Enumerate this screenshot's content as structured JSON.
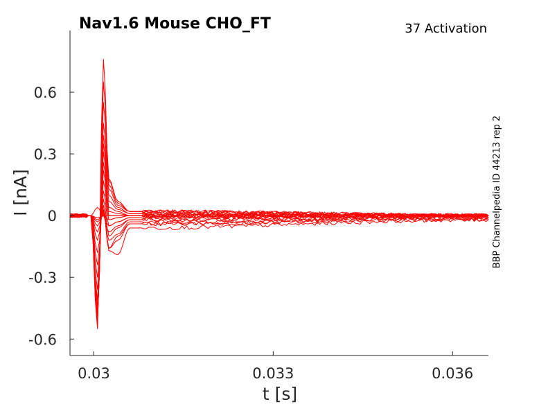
{
  "chart_data": {
    "type": "line",
    "title": "Nav1.6  Mouse  CHO_FT",
    "subtitle": "37  Activation",
    "side_label": "BBP Channelpedia ID 44213 rep 2",
    "xlabel": "t [s]",
    "ylabel": "I [nA]",
    "xlim": [
      0.0296,
      0.0366
    ],
    "ylim": [
      -0.68,
      0.9
    ],
    "x_ticks": [
      0.03,
      0.033,
      0.036
    ],
    "x_tick_labels": [
      "0.03",
      "0.033",
      "0.036"
    ],
    "y_ticks": [
      -0.6,
      -0.3,
      0,
      0.3,
      0.6
    ],
    "y_tick_labels": [
      "-0.6",
      "-0.3",
      "0",
      "0.3",
      "0.6"
    ],
    "grid": false,
    "series_color": "#ff0000",
    "series": [
      {
        "values": [
          [
            0.0296,
            0.0
          ],
          [
            0.02995,
            0.0
          ],
          [
            0.03006,
            0.04
          ],
          [
            0.03016,
            0.0
          ],
          [
            0.03025,
            0.0
          ],
          [
            0.0304,
            0.0
          ],
          [
            0.0306,
            0.0
          ],
          [
            0.0366,
            0.0
          ]
        ]
      },
      {
        "values": [
          [
            0.0296,
            0.0
          ],
          [
            0.02995,
            0.0
          ],
          [
            0.03006,
            -0.02
          ],
          [
            0.03016,
            0.0
          ],
          [
            0.03025,
            -0.02
          ],
          [
            0.0304,
            -0.01
          ],
          [
            0.0306,
            0.0
          ],
          [
            0.0366,
            0.0
          ]
        ]
      },
      {
        "values": [
          [
            0.0296,
            0.0
          ],
          [
            0.02995,
            0.0
          ],
          [
            0.03006,
            -0.01
          ],
          [
            0.03016,
            0.0
          ],
          [
            0.03025,
            -0.05
          ],
          [
            0.0304,
            -0.03
          ],
          [
            0.0306,
            -0.01
          ],
          [
            0.0366,
            0.0
          ]
        ]
      },
      {
        "values": [
          [
            0.0296,
            0.0
          ],
          [
            0.02995,
            0.0
          ],
          [
            0.03006,
            -0.03
          ],
          [
            0.03016,
            0.0
          ],
          [
            0.03025,
            -0.08
          ],
          [
            0.0304,
            -0.05
          ],
          [
            0.0306,
            -0.02
          ],
          [
            0.0366,
            -0.01
          ]
        ]
      },
      {
        "values": [
          [
            0.0296,
            0.0
          ],
          [
            0.02995,
            0.0
          ],
          [
            0.03006,
            -0.05
          ],
          [
            0.03016,
            0.01
          ],
          [
            0.03025,
            -0.12
          ],
          [
            0.0304,
            -0.09
          ],
          [
            0.0306,
            -0.03
          ],
          [
            0.0366,
            -0.01
          ]
        ]
      },
      {
        "values": [
          [
            0.0296,
            0.0
          ],
          [
            0.02995,
            0.0
          ],
          [
            0.03006,
            -0.08
          ],
          [
            0.03016,
            0.02
          ],
          [
            0.03025,
            -0.16
          ],
          [
            0.0304,
            -0.12
          ],
          [
            0.0306,
            -0.04
          ],
          [
            0.0366,
            -0.02
          ]
        ]
      },
      {
        "values": [
          [
            0.0296,
            0.0
          ],
          [
            0.02995,
            0.0
          ],
          [
            0.03006,
            -0.12
          ],
          [
            0.03016,
            0.03
          ],
          [
            0.03025,
            -0.17
          ],
          [
            0.0304,
            -0.19
          ],
          [
            0.0306,
            -0.06
          ],
          [
            0.0366,
            -0.02
          ]
        ]
      },
      {
        "values": [
          [
            0.0296,
            0.0
          ],
          [
            0.02995,
            0.0
          ],
          [
            0.03006,
            -0.18
          ],
          [
            0.03016,
            0.05
          ],
          [
            0.03025,
            -0.16
          ],
          [
            0.0304,
            -0.1
          ],
          [
            0.0306,
            -0.04
          ],
          [
            0.0366,
            -0.01
          ]
        ]
      },
      {
        "values": [
          [
            0.0296,
            0.0
          ],
          [
            0.02995,
            0.0
          ],
          [
            0.03006,
            -0.24
          ],
          [
            0.03016,
            0.08
          ],
          [
            0.03025,
            -0.1
          ],
          [
            0.0304,
            -0.06
          ],
          [
            0.0306,
            -0.02
          ],
          [
            0.0366,
            -0.01
          ]
        ]
      },
      {
        "values": [
          [
            0.0296,
            0.0
          ],
          [
            0.02995,
            0.0
          ],
          [
            0.03006,
            -0.3
          ],
          [
            0.03016,
            0.12
          ],
          [
            0.03025,
            -0.05
          ],
          [
            0.0304,
            -0.03
          ],
          [
            0.0306,
            -0.01
          ],
          [
            0.0366,
            0.0
          ]
        ]
      },
      {
        "values": [
          [
            0.0296,
            0.0
          ],
          [
            0.02995,
            0.0
          ],
          [
            0.03006,
            -0.36
          ],
          [
            0.03016,
            0.17
          ],
          [
            0.03025,
            -0.02
          ],
          [
            0.0304,
            -0.01
          ],
          [
            0.0306,
            0.0
          ],
          [
            0.0366,
            0.0
          ]
        ]
      },
      {
        "values": [
          [
            0.0296,
            0.0
          ],
          [
            0.02995,
            0.0
          ],
          [
            0.03006,
            -0.41
          ],
          [
            0.03016,
            0.22
          ],
          [
            0.03025,
            0.0
          ],
          [
            0.0304,
            0.0
          ],
          [
            0.0306,
            0.0
          ],
          [
            0.0366,
            0.0
          ]
        ]
      },
      {
        "values": [
          [
            0.0296,
            0.0
          ],
          [
            0.02995,
            0.0
          ],
          [
            0.03006,
            -0.44
          ],
          [
            0.03016,
            0.26
          ],
          [
            0.03025,
            0.02
          ],
          [
            0.0304,
            0.01
          ],
          [
            0.0306,
            0.0
          ],
          [
            0.0366,
            0.0
          ]
        ]
      },
      {
        "values": [
          [
            0.0296,
            0.0
          ],
          [
            0.02995,
            0.0
          ],
          [
            0.03006,
            -0.47
          ],
          [
            0.03016,
            0.31
          ],
          [
            0.03025,
            0.04
          ],
          [
            0.0304,
            0.02
          ],
          [
            0.0306,
            0.0
          ],
          [
            0.0366,
            0.0
          ]
        ]
      },
      {
        "values": [
          [
            0.0296,
            0.0
          ],
          [
            0.02995,
            0.0
          ],
          [
            0.03006,
            -0.49
          ],
          [
            0.03016,
            0.35
          ],
          [
            0.03025,
            0.07
          ],
          [
            0.0304,
            0.03
          ],
          [
            0.0306,
            0.01
          ],
          [
            0.0366,
            0.0
          ]
        ]
      },
      {
        "values": [
          [
            0.0296,
            0.0
          ],
          [
            0.02995,
            0.0
          ],
          [
            0.03006,
            -0.5
          ],
          [
            0.03016,
            0.39
          ],
          [
            0.03025,
            0.1
          ],
          [
            0.0304,
            0.04
          ],
          [
            0.0306,
            0.01
          ],
          [
            0.0366,
            0.0
          ]
        ]
      },
      {
        "values": [
          [
            0.0296,
            0.0
          ],
          [
            0.02995,
            0.0
          ],
          [
            0.03006,
            -0.51
          ],
          [
            0.03016,
            0.45
          ],
          [
            0.03025,
            0.13
          ],
          [
            0.0304,
            0.05
          ],
          [
            0.0306,
            0.02
          ],
          [
            0.0366,
            0.0
          ]
        ]
      },
      {
        "values": [
          [
            0.0296,
            0.0
          ],
          [
            0.02995,
            0.0
          ],
          [
            0.03006,
            -0.52
          ],
          [
            0.03016,
            0.55
          ],
          [
            0.03025,
            0.15
          ],
          [
            0.0304,
            0.06
          ],
          [
            0.0306,
            0.02
          ],
          [
            0.0366,
            0.0
          ]
        ]
      },
      {
        "values": [
          [
            0.0296,
            0.0
          ],
          [
            0.02995,
            0.0
          ],
          [
            0.03006,
            -0.53
          ],
          [
            0.03016,
            0.65
          ],
          [
            0.03025,
            0.17
          ],
          [
            0.0304,
            0.07
          ],
          [
            0.0306,
            0.02
          ],
          [
            0.0366,
            0.0
          ]
        ]
      },
      {
        "values": [
          [
            0.0296,
            0.0
          ],
          [
            0.02995,
            0.0
          ],
          [
            0.03006,
            -0.55
          ],
          [
            0.03016,
            0.76
          ],
          [
            0.03025,
            0.18
          ],
          [
            0.0304,
            0.07
          ],
          [
            0.0306,
            0.02
          ],
          [
            0.0366,
            0.0
          ]
        ]
      }
    ]
  }
}
